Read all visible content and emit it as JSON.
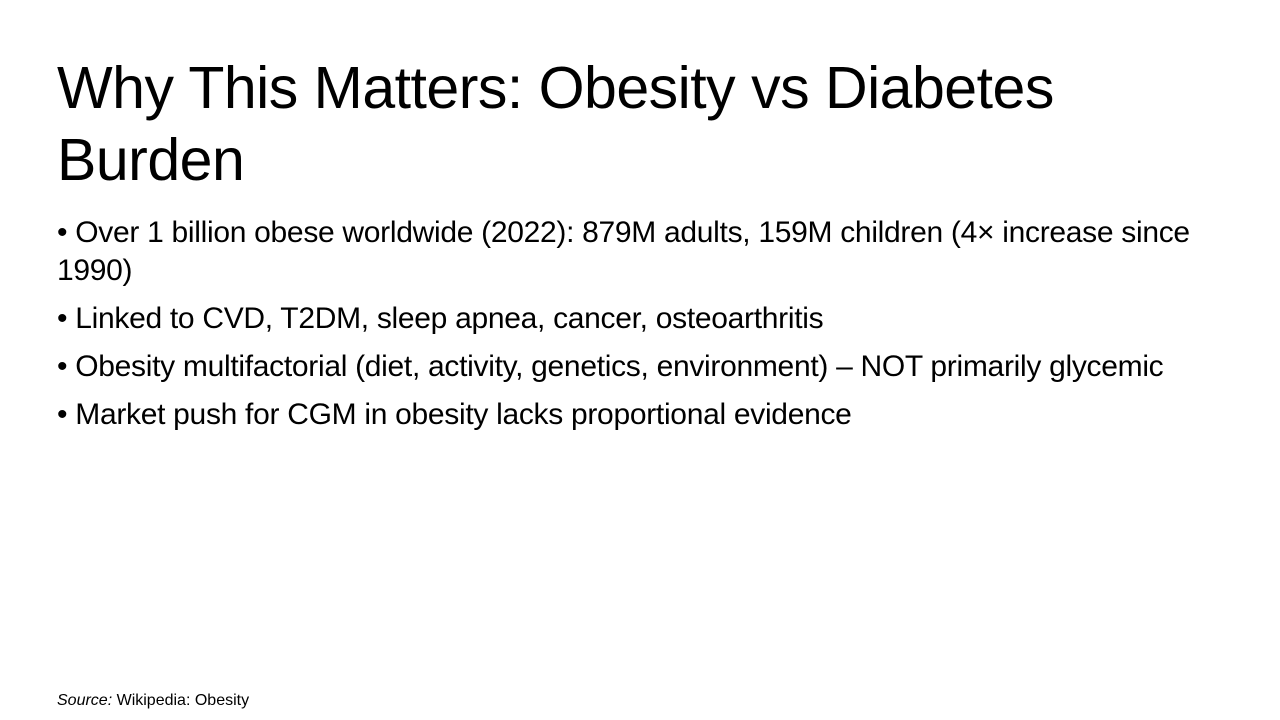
{
  "slide": {
    "title": "Why This Matters: Obesity vs Diabetes Burden",
    "bullet_symbol": "•",
    "bullets": [
      "Over 1 billion obese worldwide (2022): 879M adults, 159M children (4× increase since 1990)",
      "Linked to CVD, T2DM, sleep apnea, cancer, osteoarthritis",
      "Obesity multifactorial (diet, activity, genetics, environment) – NOT primarily glycemic",
      "Market push for CGM in obesity lacks proportional evidence"
    ],
    "source_label": "Source:",
    "source_text": "Wikipedia: Obesity"
  }
}
